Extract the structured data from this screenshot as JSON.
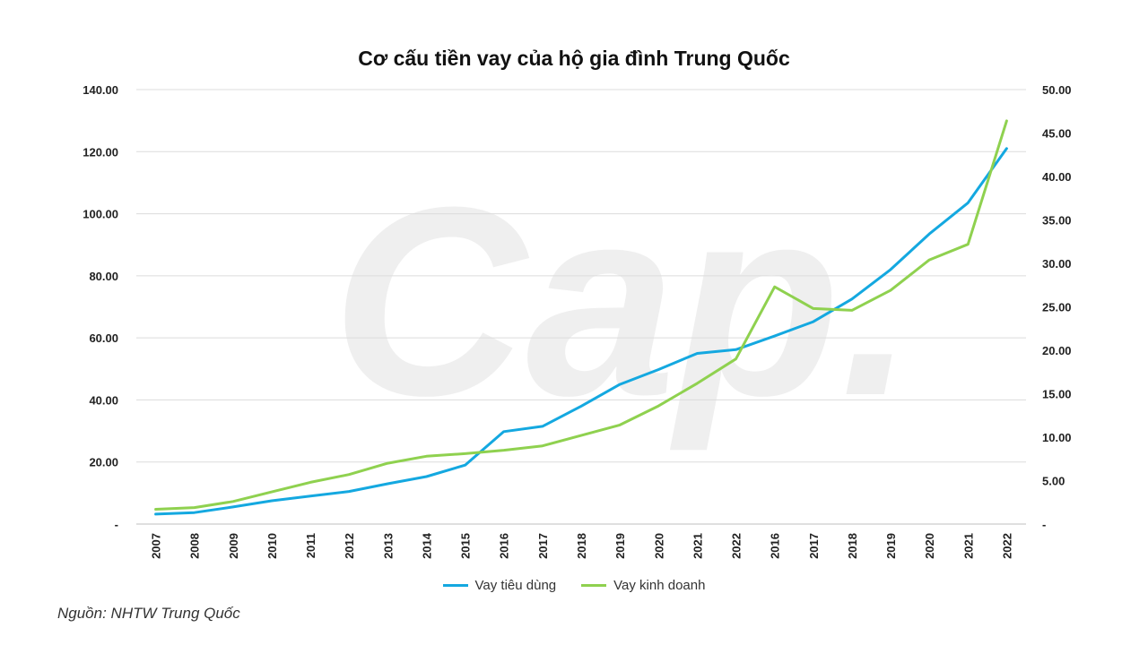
{
  "chart_data": {
    "type": "line",
    "title": "Cơ cấu tiền vay của hộ gia đình Trung Quốc",
    "categories": [
      "2007",
      "2008",
      "2009",
      "2010",
      "2011",
      "2012",
      "2013",
      "2014",
      "2015",
      "2016",
      "2017",
      "2018",
      "2019",
      "2020",
      "2021",
      "2022",
      "2016",
      "2017",
      "2018",
      "2019",
      "2020",
      "2021",
      "2022"
    ],
    "y_left": {
      "ylim": [
        0,
        140
      ],
      "tick_labels": [
        "-",
        "20.00",
        "40.00",
        "60.00",
        "80.00",
        "100.00",
        "120.00",
        "140.00"
      ]
    },
    "y_right": {
      "ylim": [
        0,
        50
      ],
      "tick_labels": [
        "-",
        "5.00",
        "10.00",
        "15.00",
        "20.00",
        "25.00",
        "30.00",
        "35.00",
        "40.00",
        "45.00",
        "50.00"
      ]
    },
    "series": [
      {
        "name": "Vay tiêu dùng",
        "axis": "left",
        "color": "#14a8e0",
        "values": [
          3.2,
          3.7,
          5.5,
          7.5,
          9.0,
          10.5,
          13.0,
          15.3,
          19.0,
          29.8,
          31.5,
          38.0,
          45.0,
          49.8,
          55.0,
          56.2,
          60.6,
          65.2,
          72.5,
          82.0,
          93.5,
          103.5,
          121.0
        ]
      },
      {
        "name": "Vay kinh doanh",
        "axis": "right",
        "color": "#8fd14f",
        "values": [
          1.7,
          1.9,
          2.6,
          3.7,
          4.8,
          5.7,
          7.0,
          7.8,
          8.1,
          8.5,
          9.0,
          10.2,
          11.4,
          13.6,
          16.2,
          19.0,
          27.3,
          24.8,
          24.6,
          26.9,
          30.4,
          32.2,
          46.4
        ]
      }
    ],
    "legend_position": "bottom",
    "grid": true
  },
  "source_note": "Nguồn: NHTW Trung Quốc",
  "watermark": "Cap."
}
